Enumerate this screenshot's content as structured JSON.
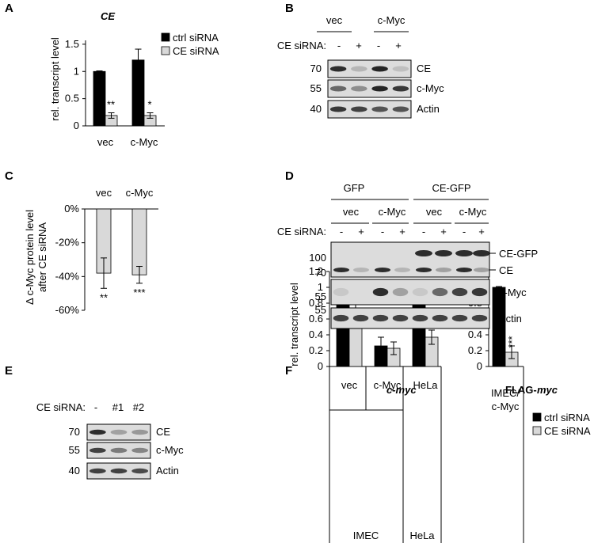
{
  "panel_letters": [
    "A",
    "B",
    "C",
    "D",
    "E",
    "F"
  ],
  "colors": {
    "ctrl": "#000000",
    "ce": "#d9d9d9",
    "blot_bg": "#dcdcdc",
    "band": "#1a1a1a"
  },
  "blot_b": {
    "group_labels": [
      "vec",
      "c-Myc"
    ],
    "sirna_label": "CE siRNA:",
    "signs": [
      "-",
      "+",
      "-",
      "+"
    ],
    "rows": [
      {
        "label": "CE",
        "mw": "70",
        "bands": [
          0.9,
          0.2,
          0.95,
          0.15
        ]
      },
      {
        "label": "c-Myc",
        "mw": "55",
        "bands": [
          0.6,
          0.4,
          0.95,
          0.85
        ]
      },
      {
        "label": "Actin",
        "mw": "40",
        "bands": [
          0.85,
          0.8,
          0.7,
          0.7
        ]
      }
    ]
  },
  "blot_d": {
    "top_groups": [
      "GFP",
      "CE-GFP"
    ],
    "sub_groups": [
      "vec",
      "c-Myc",
      "vec",
      "c-Myc"
    ],
    "sirna_label": "CE siRNA:",
    "signs": [
      "-",
      "+",
      "-",
      "+",
      "-",
      "+",
      "-",
      "+"
    ],
    "rows": [
      {
        "label": "CE-GFP",
        "mw": "100"
      },
      {
        "label": "CE",
        "mw": "70"
      },
      {
        "label": "c-Myc",
        "mw": "55"
      },
      {
        "label": "Actin",
        "mw": "55"
      }
    ]
  },
  "blot_e": {
    "sirna_label": "CE siRNA:",
    "lanes": [
      "-",
      "#1",
      "#2"
    ],
    "rows": [
      {
        "label": "CE",
        "mw": "70"
      },
      {
        "label": "c-Myc",
        "mw": "55"
      },
      {
        "label": "Actin",
        "mw": "40"
      }
    ]
  },
  "chart_data": [
    {
      "type": "bar",
      "title": "CE",
      "ylabel": "rel. transcript level",
      "categories": [
        "vec",
        "c-Myc"
      ],
      "ylim": [
        0,
        1.6
      ],
      "yticks": [
        "0",
        "0.5",
        "1",
        "1.5"
      ],
      "legend": [
        "ctrl siRNA",
        "CE siRNA"
      ],
      "series": [
        {
          "name": "ctrl siRNA",
          "values": [
            1.0,
            1.21
          ],
          "err": [
            0.01,
            0.2
          ]
        },
        {
          "name": "CE siRNA",
          "values": [
            0.19,
            0.19
          ],
          "err": [
            0.05,
            0.05
          ]
        }
      ],
      "annotations": [
        "**",
        "*"
      ]
    },
    {
      "type": "bar",
      "ylabel": "Δ c-Myc protein level after CE siRNA",
      "categories": [
        "vec",
        "c-Myc"
      ],
      "ylim": [
        -0.6,
        0
      ],
      "yticks": [
        "0%",
        "-20%",
        "-40%",
        "-60%"
      ],
      "values": [
        -0.38,
        -0.39
      ],
      "err": [
        0.09,
        0.05
      ],
      "annotations": [
        "**",
        "***"
      ]
    },
    {
      "type": "bar",
      "title": "c-myc",
      "ylabel": "rel. transcript level",
      "categories": [
        "vec",
        "c-Myc",
        "HeLa"
      ],
      "group_label": "IMEC",
      "ylim": [
        0,
        1.2
      ],
      "yticks": [
        "0",
        "0.2",
        "0.4",
        "0.6",
        "0.8",
        "1",
        "1.2"
      ],
      "series": [
        {
          "name": "ctrl siRNA",
          "values": [
            1.0,
            0.26,
            1.0
          ],
          "err": [
            0,
            0.11,
            0
          ]
        },
        {
          "name": "CE siRNA",
          "values": [
            0.67,
            0.23,
            0.37
          ],
          "err": [
            0.11,
            0.08,
            0.09
          ]
        }
      ],
      "annotations": [
        "*",
        "",
        "**"
      ]
    },
    {
      "type": "bar",
      "title": "FLAG-myc",
      "categories": [
        "IMEC/\nc-Myc"
      ],
      "ylim": [
        0,
        1.2
      ],
      "yticks": [
        "0",
        "0.2",
        "0.4",
        "0.6",
        "0.8",
        "1",
        "1.2"
      ],
      "legend": [
        "ctrl siRNA",
        "CE siRNA"
      ],
      "series": [
        {
          "name": "ctrl siRNA",
          "values": [
            1.0
          ],
          "err": [
            0.01
          ]
        },
        {
          "name": "CE siRNA",
          "values": [
            0.18
          ],
          "err": [
            0.08
          ]
        }
      ],
      "annotations": [
        "***"
      ]
    }
  ]
}
